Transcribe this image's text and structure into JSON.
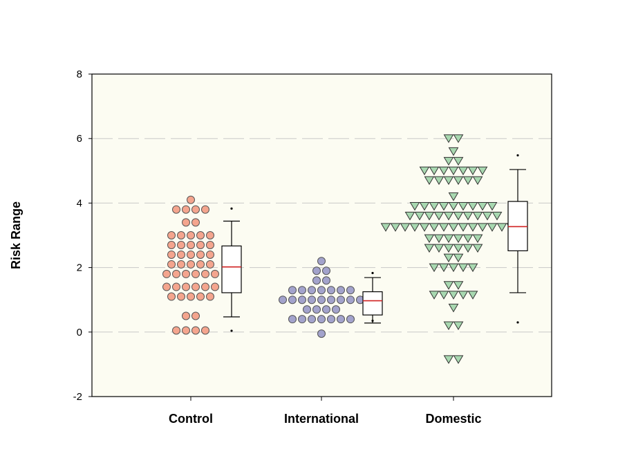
{
  "chart_data": {
    "type": "scatter",
    "subtype": "dot-plot-with-boxplot",
    "title": "",
    "xlabel": "",
    "ylabel": "Risk Range",
    "ylim": [
      -2,
      8
    ],
    "yticks": [
      -2,
      0,
      2,
      4,
      6,
      8
    ],
    "ytick_labels": [
      "-2",
      "0",
      "2",
      "4",
      "6",
      "8"
    ],
    "grid": "horizontal-dashed",
    "background": "#fcfcf2",
    "categories": [
      "Control",
      "International",
      "Domestic"
    ],
    "series": [
      {
        "name": "Control",
        "marker": "circle",
        "fill": "#f4a58e",
        "points": [
          {
            "y": 4.1,
            "n": 1
          },
          {
            "y": 3.8,
            "n": 4
          },
          {
            "y": 3.4,
            "n": 2
          },
          {
            "y": 3.0,
            "n": 5
          },
          {
            "y": 2.7,
            "n": 5
          },
          {
            "y": 2.4,
            "n": 5
          },
          {
            "y": 2.1,
            "n": 5
          },
          {
            "y": 1.8,
            "n": 6
          },
          {
            "y": 1.4,
            "n": 6
          },
          {
            "y": 1.1,
            "n": 5
          },
          {
            "y": 0.5,
            "n": 2
          },
          {
            "y": 0.05,
            "n": 4
          }
        ],
        "box": {
          "whisker_low": 0.47,
          "q1": 1.22,
          "median": 2.02,
          "q3": 2.67,
          "whisker_high": 3.44,
          "outliers": [
            3.83,
            0.04
          ]
        }
      },
      {
        "name": "International",
        "marker": "circle",
        "fill": "#a3a3cc",
        "points": [
          {
            "y": 2.2,
            "n": 1
          },
          {
            "y": 1.9,
            "n": 2
          },
          {
            "y": 1.6,
            "n": 2
          },
          {
            "y": 1.3,
            "n": 7
          },
          {
            "y": 1.0,
            "n": 9
          },
          {
            "y": 0.7,
            "n": 4
          },
          {
            "y": 0.4,
            "n": 7
          },
          {
            "y": -0.05,
            "n": 1
          }
        ],
        "box": {
          "whisker_low": 0.28,
          "q1": 0.53,
          "median": 0.97,
          "q3": 1.25,
          "whisker_high": 1.69,
          "outliers": [
            1.83,
            0.35
          ]
        }
      },
      {
        "name": "Domestic",
        "marker": "triangle-down",
        "fill": "#a8d8b0",
        "points": [
          {
            "y": 6.0,
            "n": 2
          },
          {
            "y": 5.6,
            "n": 1
          },
          {
            "y": 5.3,
            "n": 2
          },
          {
            "y": 5.0,
            "n": 7
          },
          {
            "y": 4.7,
            "n": 6
          },
          {
            "y": 4.2,
            "n": 1
          },
          {
            "y": 3.9,
            "n": 9
          },
          {
            "y": 3.6,
            "n": 10
          },
          {
            "y": 3.25,
            "n": 15
          },
          {
            "y": 2.9,
            "n": 6
          },
          {
            "y": 2.6,
            "n": 6
          },
          {
            "y": 2.3,
            "n": 2
          },
          {
            "y": 2.0,
            "n": 5
          },
          {
            "y": 1.45,
            "n": 2
          },
          {
            "y": 1.15,
            "n": 5
          },
          {
            "y": 0.75,
            "n": 1
          },
          {
            "y": 0.2,
            "n": 2
          },
          {
            "y": -0.85,
            "n": 2
          }
        ],
        "box": {
          "whisker_low": 1.22,
          "q1": 2.52,
          "median": 3.27,
          "q3": 4.05,
          "whisker_high": 5.04,
          "outliers": [
            5.48,
            0.3
          ]
        }
      }
    ]
  }
}
